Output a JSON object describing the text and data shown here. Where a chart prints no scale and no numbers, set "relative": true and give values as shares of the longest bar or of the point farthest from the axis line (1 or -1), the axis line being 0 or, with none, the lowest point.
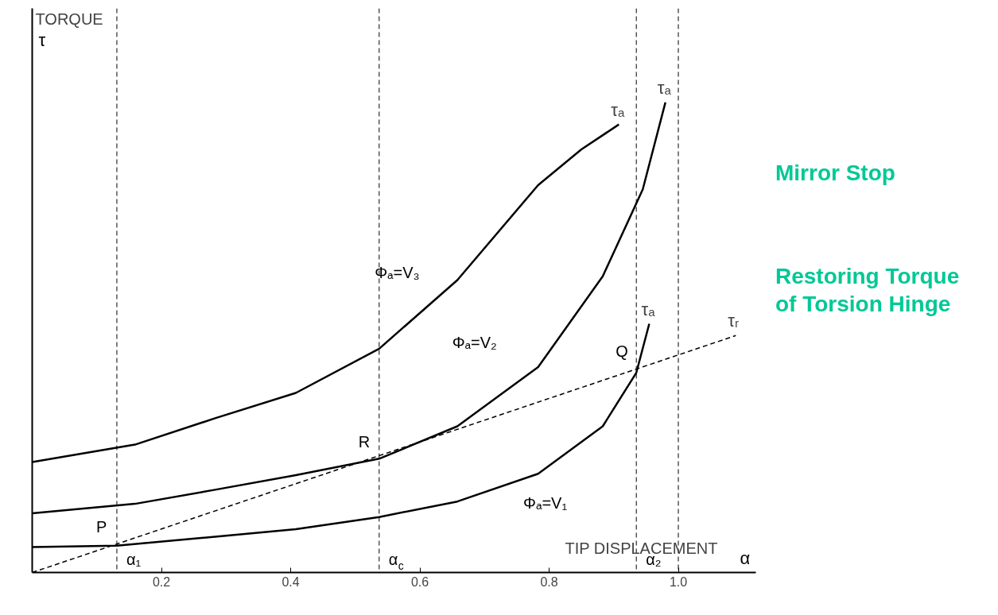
{
  "chart_data": {
    "type": "line",
    "relative": true,
    "xlabel": "TIP DISPLACEMENT",
    "ylabel": "TORQUE",
    "xlim": [
      0,
      1.12
    ],
    "xticks": [
      0.2,
      0.4,
      0.6,
      0.8,
      {
        "value": 1.0,
        "label": "1.0"
      }
    ],
    "grid": false,
    "legend": false,
    "tick_labels": "x",
    "series": [
      {
        "name": "τₐ",
        "color": "#000000",
        "line_style": "solid",
        "x": [
          0,
          0.159,
          0.283,
          0.408,
          0.537,
          0.658,
          0.783,
          0.85,
          0.908
        ],
        "values": [
          0.235,
          0.272,
          0.328,
          0.382,
          0.476,
          0.622,
          0.824,
          0.9,
          0.953
        ]
      },
      {
        "name": "τₐ",
        "color": "#000000",
        "line_style": "solid",
        "x": [
          0,
          0.159,
          0.283,
          0.408,
          0.537,
          0.658,
          0.783,
          0.883,
          0.945,
          0.98
        ],
        "values": [
          0.126,
          0.146,
          0.176,
          0.207,
          0.242,
          0.311,
          0.437,
          0.63,
          0.815,
          1.0
        ]
      },
      {
        "name": "τₐ",
        "color": "#000000",
        "line_style": "solid",
        "x": [
          0,
          0.131,
          0.283,
          0.408,
          0.537,
          0.658,
          0.783,
          0.883,
          0.935,
          0.955
        ],
        "values": [
          0.054,
          0.057,
          0.076,
          0.092,
          0.118,
          0.151,
          0.21,
          0.311,
          0.425,
          0.529
        ]
      },
      {
        "name": "τᵣ",
        "color": "#000000",
        "line_style": "dashed",
        "x": [
          0,
          1.089
        ],
        "values": [
          0,
          0.504
        ]
      }
    ],
    "ref_lines": [
      {
        "axis": "x",
        "value": 0.131,
        "label": "α₁",
        "line_style": "dashed"
      },
      {
        "axis": "x",
        "value": 0.537,
        "label": "α$_{c}$",
        "line_style": "dashed"
      },
      {
        "axis": "x",
        "value": 0.935,
        "label": "α₂",
        "line_style": "dashed"
      },
      {
        "axis": "x",
        "value": 1.0,
        "label": null,
        "line_style": "dashed"
      }
    ],
    "annotations": [
      {
        "text": "P",
        "x": 0.131,
        "y": 0.061
      },
      {
        "text": "R",
        "x": 0.537,
        "y": 0.242
      },
      {
        "text": "Q",
        "x": 0.935,
        "y": 0.435
      },
      "Φₐ=V₃",
      "Φₐ=V₂",
      "Φₐ=V₁",
      "Mirror Stop",
      "Restoring Torque of Torsion Hinge",
      "τ",
      "α"
    ]
  }
}
